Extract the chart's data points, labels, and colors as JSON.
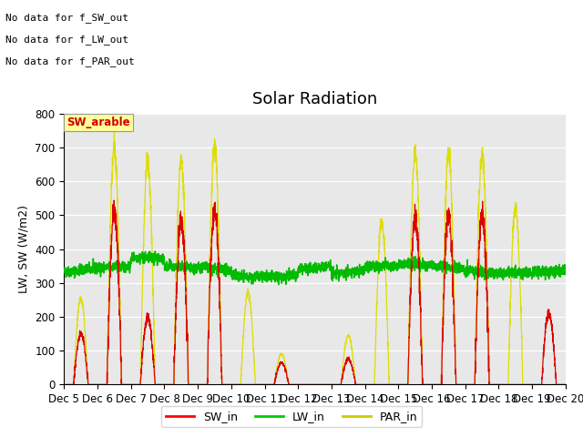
{
  "title": "Solar Radiation",
  "ylabel": "LW, SW (W/m2)",
  "ylim": [
    0,
    800
  ],
  "bg_color": "#e8e8e8",
  "fig_bg": "#ffffff",
  "annotations": [
    "No data for f_SW_out",
    "No data for f_LW_out",
    "No data for f_PAR_out"
  ],
  "legend_box_text": "SW_arable",
  "legend_items": [
    "SW_in",
    "LW_in",
    "PAR_in"
  ],
  "legend_colors": [
    "#ff0000",
    "#00cc00",
    "#cccc00"
  ],
  "sw_color": "#dd0000",
  "lw_color": "#00bb00",
  "par_color": "#dddd00",
  "n_days": 15,
  "n_points_per_day": 240,
  "day_sw_peaks": [
    150,
    520,
    200,
    490,
    520,
    0,
    65,
    0,
    75,
    0,
    500,
    500,
    505,
    0,
    210
  ],
  "day_par_peaks": [
    255,
    700,
    665,
    665,
    705,
    270,
    90,
    0,
    145,
    480,
    685,
    685,
    685,
    520,
    0
  ]
}
